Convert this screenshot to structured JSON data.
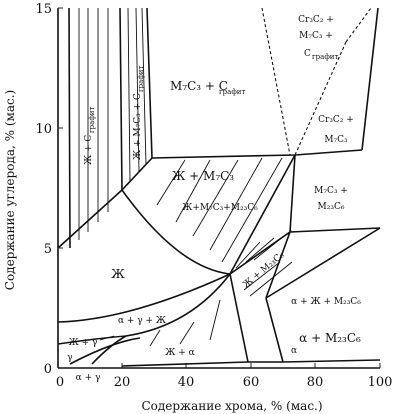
{
  "axes": {
    "x_title": "Содержание хрома, % (мас.)",
    "y_title": "Содержание углерода, % (мас.)",
    "x_ticks": [
      "0",
      "20",
      "40",
      "60",
      "80",
      "100"
    ],
    "y_ticks": [
      "0",
      "5",
      "10",
      "15"
    ],
    "x_range": [
      0,
      100
    ],
    "y_range": [
      0,
      15
    ]
  },
  "regions": [
    {
      "id": "liquid",
      "text": "Ж"
    },
    {
      "id": "liquid-graphite",
      "text": "Ж + С",
      "sub": "графит"
    },
    {
      "id": "liquid-m7c3-graphite",
      "text": "Ж + М₇С₃ + С",
      "sub": "графит"
    },
    {
      "id": "m7c3-graphite",
      "text": "М₇С₃ + С",
      "sub": "графит"
    },
    {
      "id": "cr3c2-m7c3-graphite",
      "lines": [
        "Cr₃C₂ +",
        "M₇C₃ +"
      ],
      "text": "С",
      "sub": "графит"
    },
    {
      "id": "cr3c2-m7c3",
      "lines": [
        "Cr₃C₂ +",
        "M₇C₃"
      ]
    },
    {
      "id": "liquid-m7c3",
      "text": "Ж + М₇С₃"
    },
    {
      "id": "liquid-m7c3-m23c6",
      "text": "Ж+М₇С₃+М₂₃С₆"
    },
    {
      "id": "m7c3-m23c6",
      "lines": [
        "М₇С₃ +",
        "М₂₃С₆"
      ]
    },
    {
      "id": "liquid-m23c6",
      "text": "Ж + М₂₃С₆"
    },
    {
      "id": "alpha-liquid-m23c6",
      "text": "α + Ж + М₂₃С₆"
    },
    {
      "id": "alpha-m23c6",
      "text": "α + М₂₃С₆"
    },
    {
      "id": "alpha-gamma-liquid",
      "text": "α + γ + Ж"
    },
    {
      "id": "liquid-gamma",
      "text": "Ж + γ"
    },
    {
      "id": "liquid-alpha",
      "text": "Ж + α"
    },
    {
      "id": "gamma",
      "text": "γ"
    },
    {
      "id": "alpha-gamma",
      "text": "α + γ"
    },
    {
      "id": "alpha",
      "text": "α"
    }
  ]
}
